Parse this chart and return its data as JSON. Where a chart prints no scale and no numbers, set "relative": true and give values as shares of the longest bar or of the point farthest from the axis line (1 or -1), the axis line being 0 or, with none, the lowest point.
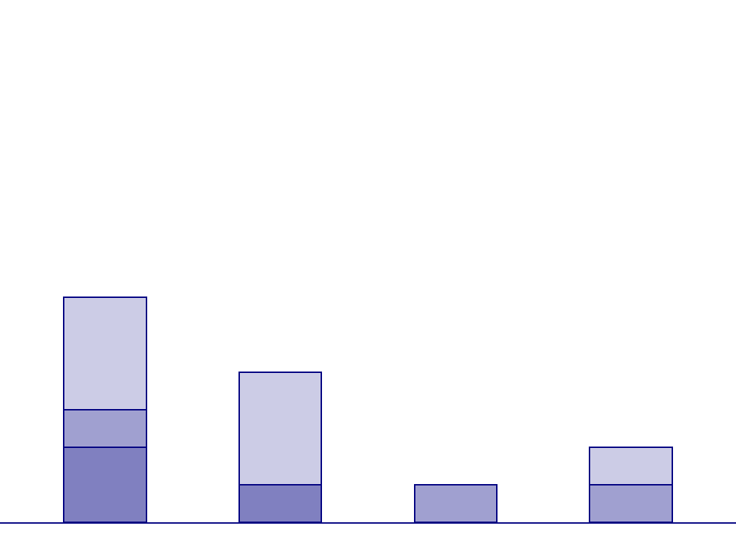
{
  "chart_data": {
    "type": "bar",
    "stacked": true,
    "relative": true,
    "categories": [
      null,
      null,
      null,
      null
    ],
    "series": [
      {
        "color": "#8080c0",
        "values": [
          0.333,
          0.167,
          null,
          null
        ]
      },
      {
        "color": "#a0a0d0",
        "values": [
          0.167,
          null,
          0.167,
          0.167
        ]
      },
      {
        "color": "#ccccE6",
        "values": [
          0.5,
          0.5,
          null,
          0.167
        ]
      }
    ]
  }
}
